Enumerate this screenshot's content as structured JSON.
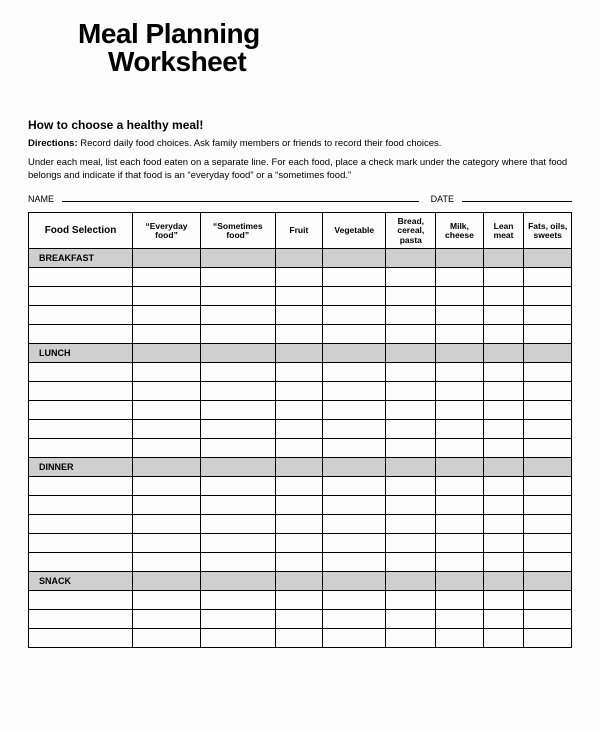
{
  "title_line1": "Meal Planning",
  "title_line2": "Worksheet",
  "subtitle": "How to choose a healthy meal!",
  "directions_label": "Directions:",
  "directions_text1": " Record daily food choices. Ask family members or friends to record their food choices.",
  "directions_text2": "Under each meal, list each food eaten on a separate line. For each food, place a check mark under the category where that food belongs and indicate if that food is an “everyday food” or a “sometimes food.”",
  "name_label": "NAME",
  "date_label": "DATE",
  "table": {
    "columns": [
      "Food Selection",
      "“Everyday food”",
      "“Sometimes food”",
      "Fruit",
      "Vegetable",
      "Bread, cereal, pasta",
      "Milk, cheese",
      "Lean meat",
      "Fats, oils, sweets"
    ],
    "sections": [
      {
        "label": "BREAKFAST",
        "blank_rows": 4
      },
      {
        "label": "LUNCH",
        "blank_rows": 5
      },
      {
        "label": "DINNER",
        "blank_rows": 5
      },
      {
        "label": "SNACK",
        "blank_rows": 3
      }
    ],
    "col_classes": [
      "c-foodsel",
      "c-ev",
      "c-st",
      "c-fruit",
      "c-veg",
      "c-bread",
      "c-milk",
      "c-lean",
      "c-fats"
    ],
    "header_classes": [
      "foodsel",
      "",
      "",
      "",
      "",
      "",
      "",
      "",
      ""
    ]
  }
}
